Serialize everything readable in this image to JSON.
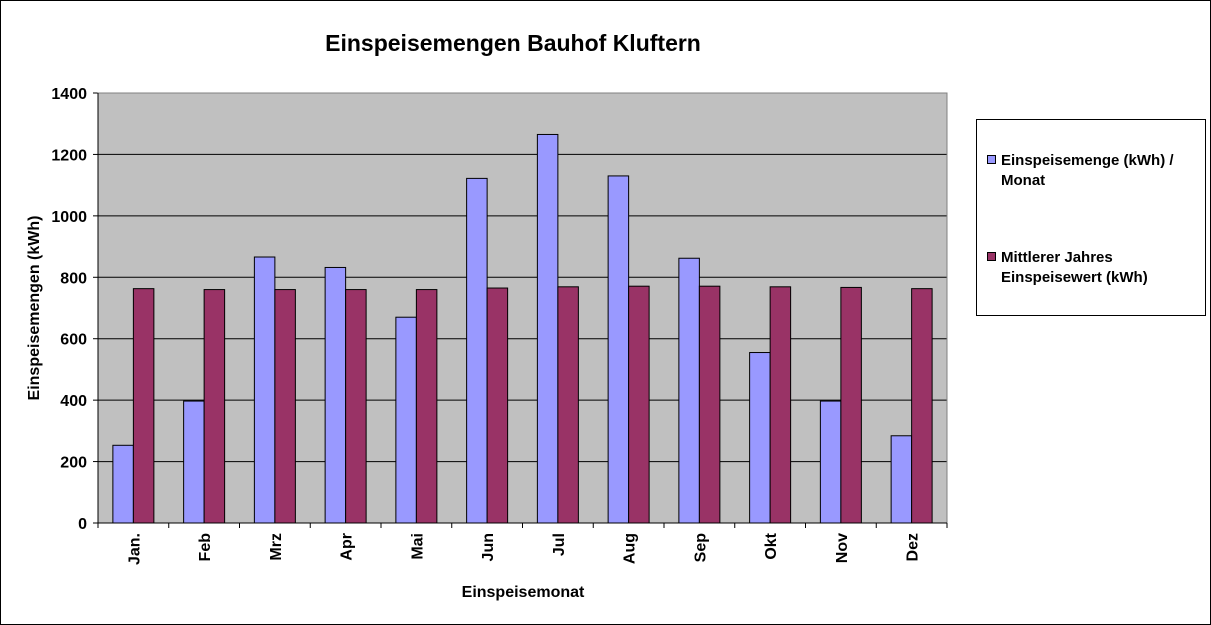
{
  "chart_data": {
    "type": "bar",
    "title": "Einspeisemengen Bauhof Kluftern",
    "xlabel": "Einspeisemonat",
    "ylabel": "Einspeisemengen (kWh)",
    "ylim": [
      0,
      1400
    ],
    "yticks": [
      "0",
      "200",
      "400",
      "600",
      "800",
      "1000",
      "1200",
      "1400"
    ],
    "grid": true,
    "legend_position": "right",
    "categories": [
      "Jan.",
      "Feb",
      "Mrz",
      "Apr",
      "Mai",
      "Jun",
      "Jul",
      "Aug",
      "Sep",
      "Okt",
      "Nov",
      "Dez"
    ],
    "series": [
      {
        "name": "Einspeisemenge (kWh) / Monat",
        "color": "#9999FF",
        "values": [
          253,
          397,
          866,
          832,
          670,
          1122,
          1265,
          1130,
          862,
          555,
          397,
          284
        ]
      },
      {
        "name": "Mittlerer Jahres Einspeisewert (kWh)",
        "color": "#993366",
        "values": [
          763,
          760,
          760,
          760,
          760,
          765,
          769,
          771,
          771,
          769,
          767,
          763
        ]
      }
    ]
  },
  "legend": {
    "items": [
      {
        "line1": "Einspeisemenge (kWh) /",
        "line2": "Monat",
        "color": "#9999FF"
      },
      {
        "line1": "Mittlerer Jahres",
        "line2": "Einspeisewert (kWh)",
        "color": "#993366"
      }
    ]
  },
  "colors": {
    "plot_background": "#C0C0C0",
    "gridline": "#000000"
  }
}
